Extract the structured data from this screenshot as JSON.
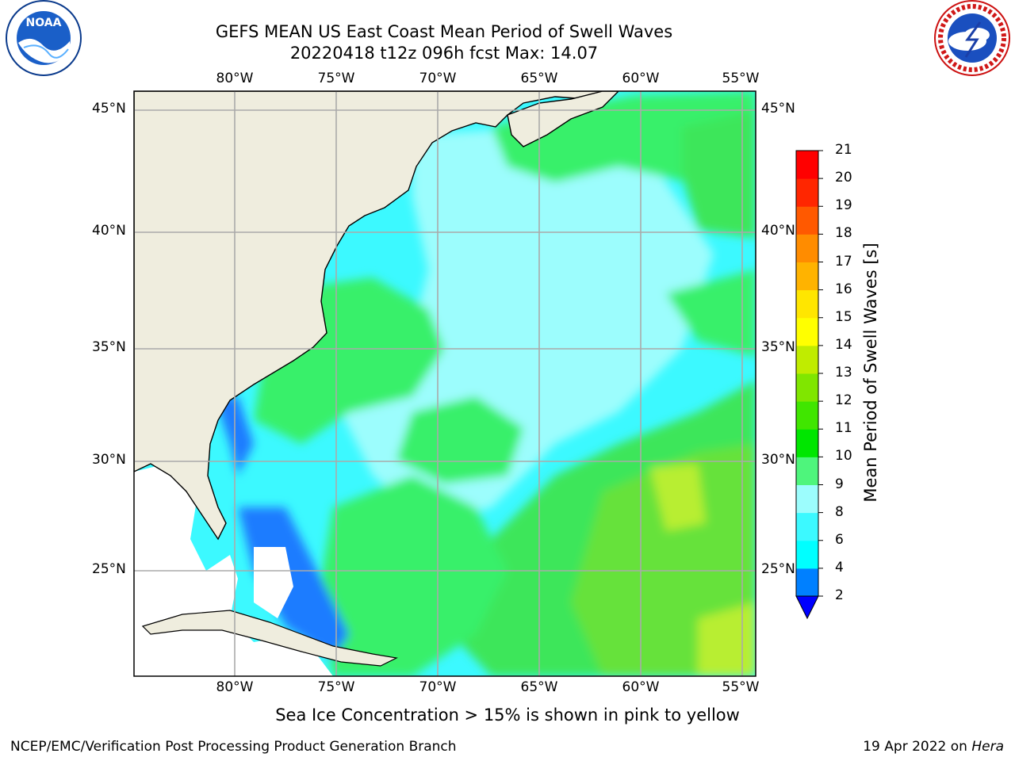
{
  "header": {
    "title_line1": "GEFS MEAN US East Coast Mean Period of Swell Waves",
    "title_line2": "20220418 t12z 096h fcst   Max: 14.07"
  },
  "logos": {
    "left": "noaa-logo",
    "right": "nws-logo",
    "right_ring_text": "NATIONAL WEATHER SERVICE"
  },
  "map": {
    "lon_labels": [
      "80°W",
      "75°W",
      "70°W",
      "65°W",
      "60°W",
      "55°W"
    ],
    "lat_labels": [
      "45°N",
      "40°N",
      "35°N",
      "30°N",
      "25°N"
    ],
    "colors": {
      "land": "#efedde",
      "ocean_low": "#3cf9ff",
      "ocean_mid": "#9cfdfd",
      "ocean_green": "#39f06b",
      "gridline": "#aaaaaa"
    }
  },
  "colorbar": {
    "title": "Mean Period of Swell Waves [s]",
    "levels": [
      "2",
      "4",
      "6",
      "8",
      "9",
      "10",
      "11",
      "12",
      "13",
      "14",
      "15",
      "16",
      "17",
      "18",
      "19",
      "20",
      "21"
    ],
    "colors": [
      "#0000ff",
      "#0080ff",
      "#00ffff",
      "#3cf9ff",
      "#9cfdfd",
      "#4ef57c",
      "#00e600",
      "#40e600",
      "#80e600",
      "#c0ec00",
      "#ffff00",
      "#ffe600",
      "#ffb300",
      "#ff8c00",
      "#ff5900",
      "#ff2600",
      "#ff0000"
    ]
  },
  "note": "Sea Ice Concentration > 15% is shown in pink to yellow",
  "footer": {
    "left": "NCEP/EMC/Verification Post Processing Product Generation Branch",
    "date": "19 Apr 2022 on",
    "machine": "Hera"
  }
}
